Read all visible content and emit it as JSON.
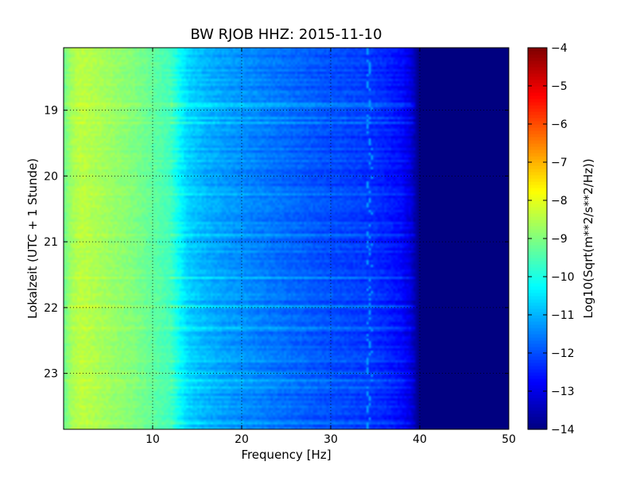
{
  "chart_data": {
    "type": "heatmap",
    "title": "BW RJOB HHZ: 2015-11-10",
    "xlabel": "Frequency [Hz]",
    "ylabel": "Lokalzeit (UTC + 1 Stunde)",
    "xlim": [
      0,
      50
    ],
    "ylim": [
      18.05,
      23.85
    ],
    "y_inverted": true,
    "grid": true,
    "x_ticks": [
      {
        "value": 10,
        "label": "10"
      },
      {
        "value": 20,
        "label": "20"
      },
      {
        "value": 30,
        "label": "30"
      },
      {
        "value": 40,
        "label": "40"
      },
      {
        "value": 50,
        "label": "50"
      }
    ],
    "y_ticks": [
      {
        "value": 19,
        "label": "19"
      },
      {
        "value": 20,
        "label": "20"
      },
      {
        "value": 21,
        "label": "21"
      },
      {
        "value": 22,
        "label": "22"
      },
      {
        "value": 23,
        "label": "23"
      }
    ],
    "colorbar": {
      "label": "Log10(Sqrt(m**2/s**2/Hz))",
      "colormap": "jet",
      "range": [
        -14,
        -4
      ],
      "ticks": [
        {
          "value": -4,
          "label": "−4"
        },
        {
          "value": -5,
          "label": "−5"
        },
        {
          "value": -6,
          "label": "−6"
        },
        {
          "value": -7,
          "label": "−7"
        },
        {
          "value": -8,
          "label": "−8"
        },
        {
          "value": -9,
          "label": "−9"
        },
        {
          "value": -10,
          "label": "−10"
        },
        {
          "value": -11,
          "label": "−11"
        },
        {
          "value": -12,
          "label": "−12"
        },
        {
          "value": -13,
          "label": "−13"
        },
        {
          "value": -14,
          "label": "−14"
        }
      ]
    },
    "spectrum_profile": {
      "frequency_hz": [
        0,
        1,
        2,
        5,
        8,
        10,
        12,
        13,
        14,
        16,
        18,
        20,
        22,
        25,
        28,
        30,
        32,
        34,
        36,
        38,
        39,
        40,
        50
      ],
      "log10_amplitude": [
        -9.2,
        -8.6,
        -8.4,
        -8.7,
        -9.0,
        -9.3,
        -9.6,
        -10.2,
        -10.7,
        -11.0,
        -11.2,
        -11.35,
        -11.5,
        -11.7,
        -11.9,
        -12.0,
        -12.1,
        -12.2,
        -12.4,
        -12.7,
        -13.1,
        -14.0,
        -14.0
      ]
    },
    "spectral_line": {
      "frequency_hz": 34.2,
      "log10_amplitude": -11.2
    }
  }
}
